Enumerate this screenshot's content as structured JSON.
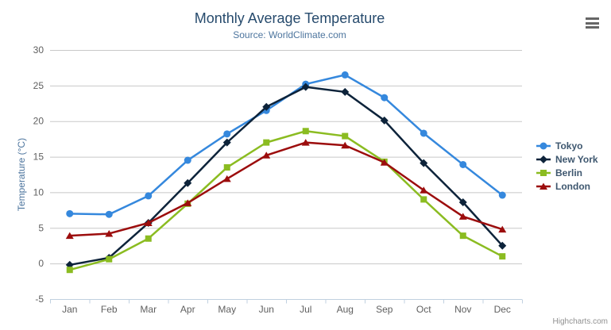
{
  "header": {
    "title": "Monthly Average Temperature",
    "subtitle": "Source: WorldClimate.com"
  },
  "credits": "Highcharts.com",
  "chart_data": {
    "type": "line",
    "title": "Monthly Average Temperature",
    "subtitle": "Source: WorldClimate.com",
    "categories": [
      "Jan",
      "Feb",
      "Mar",
      "Apr",
      "May",
      "Jun",
      "Jul",
      "Aug",
      "Sep",
      "Oct",
      "Nov",
      "Dec"
    ],
    "series": [
      {
        "name": "Tokyo",
        "color": "#3588dd",
        "marker": "circle",
        "values": [
          7.0,
          6.9,
          9.5,
          14.5,
          18.2,
          21.5,
          25.2,
          26.5,
          23.3,
          18.3,
          13.9,
          9.6
        ]
      },
      {
        "name": "New York",
        "color": "#0d233a",
        "marker": "diamond",
        "values": [
          -0.2,
          0.8,
          5.7,
          11.3,
          17.0,
          22.0,
          24.8,
          24.1,
          20.1,
          14.1,
          8.6,
          2.5
        ]
      },
      {
        "name": "Berlin",
        "color": "#8bbc21",
        "marker": "square",
        "values": [
          -0.9,
          0.6,
          3.5,
          8.4,
          13.5,
          17.0,
          18.6,
          17.9,
          14.3,
          9.0,
          3.9,
          1.0
        ]
      },
      {
        "name": "London",
        "color": "#9c0d0d",
        "marker": "triangle",
        "values": [
          3.9,
          4.2,
          5.7,
          8.5,
          11.9,
          15.2,
          17.0,
          16.6,
          14.2,
          10.3,
          6.6,
          4.8
        ]
      }
    ],
    "xlabel": "",
    "ylabel": "Temperature (°C)",
    "ylim": [
      -5,
      30
    ],
    "ytick_step": 5,
    "grid": true,
    "legend_position": "right"
  },
  "theme": {
    "title_color": "#274b6d",
    "subtitle_color": "#4d759e",
    "axis_title_color": "#4d759e",
    "tick_label_color": "#606060",
    "grid_color": "#c8c8c8",
    "axis_line_color": "#c0d0e0",
    "legend_text_color": "#3e576f",
    "credits_color": "#909090",
    "menu_icon_color": "#666666"
  }
}
